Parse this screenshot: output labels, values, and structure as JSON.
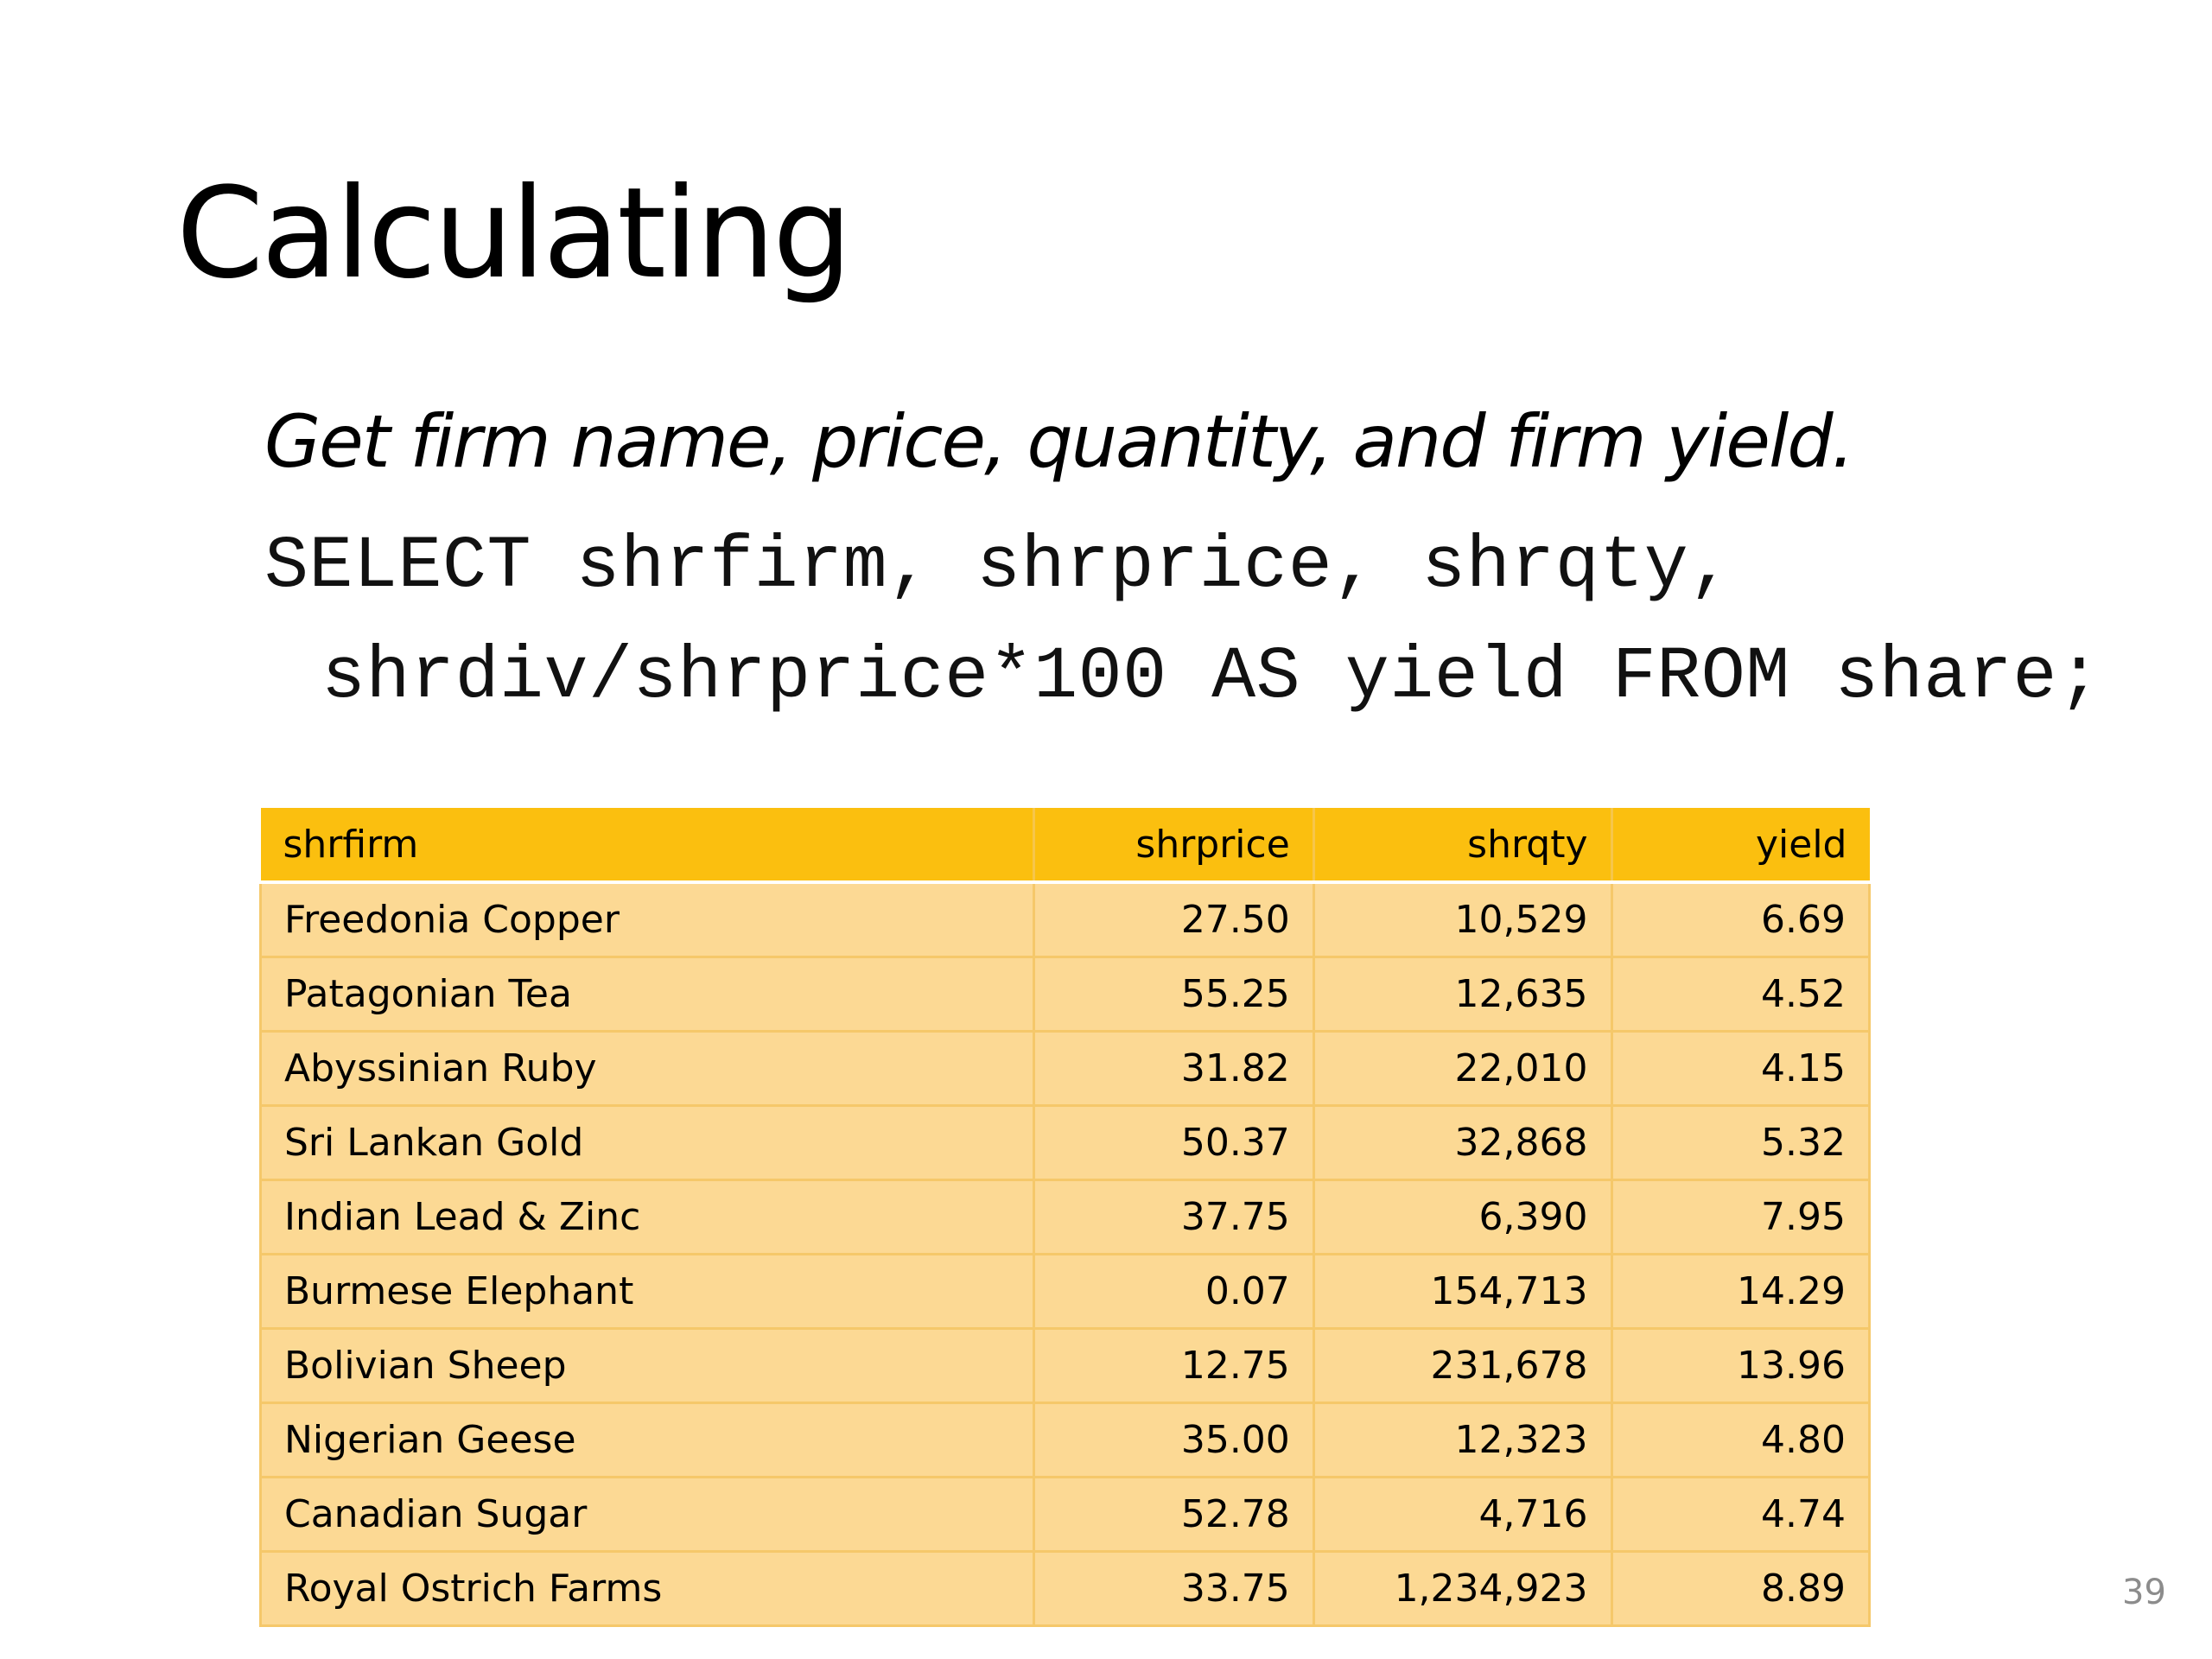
{
  "slide": {
    "title": "Calculating",
    "question": "Get firm name, price, quantity, and firm yield.",
    "sql_line_1": "SELECT shrfirm, shrprice, shrqty,",
    "sql_line_2": "shrdiv/shrprice*100 AS yield FROM share;",
    "page_number": "39"
  },
  "table": {
    "headers": [
      "shrfirm",
      "shrprice",
      "shrqty",
      "yield"
    ],
    "rows": [
      [
        "Freedonia Copper",
        "27.50",
        "10,529",
        "6.69"
      ],
      [
        "Patagonian Tea",
        "55.25",
        "12,635",
        "4.52"
      ],
      [
        "Abyssinian Ruby",
        "31.82",
        "22,010",
        "4.15"
      ],
      [
        "Sri Lankan Gold",
        "50.37",
        "32,868",
        "5.32"
      ],
      [
        "Indian Lead & Zinc",
        "37.75",
        "6,390",
        "7.95"
      ],
      [
        "Burmese Elephant",
        "0.07",
        "154,713",
        "14.29"
      ],
      [
        "Bolivian Sheep",
        "12.75",
        "231,678",
        "13.96"
      ],
      [
        "Nigerian Geese",
        "35.00",
        "12,323",
        "4.80"
      ],
      [
        "Canadian Sugar",
        "52.78",
        "4,716",
        "4.74"
      ],
      [
        "Royal Ostrich Farms",
        "33.75",
        "1,234,923",
        "8.89"
      ]
    ]
  },
  "colors": {
    "header_fill": "#fbbf0f",
    "row_fill": "#fcd994",
    "grid_line": "#f5c86a"
  }
}
